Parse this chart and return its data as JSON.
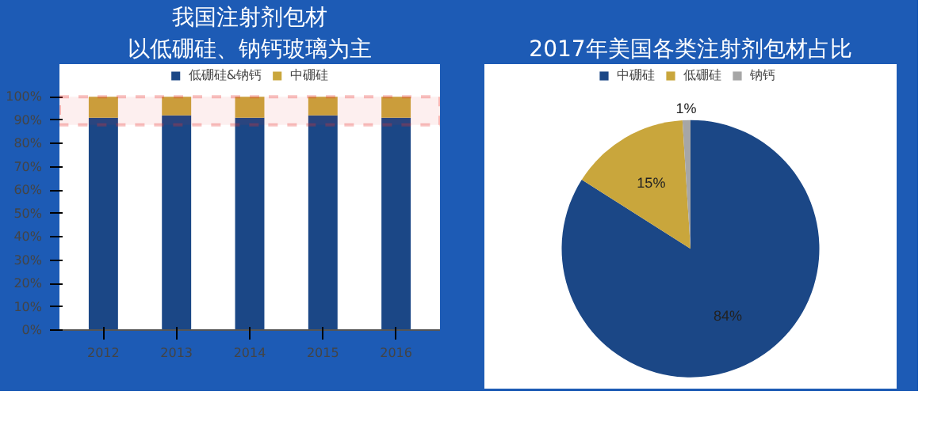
{
  "chart_data": [
    {
      "type": "bar",
      "title": "我国注射剂包材",
      "subtitle": "以低硼硅、钠钙玻璃为主",
      "stacked": true,
      "categories": [
        "2012",
        "2013",
        "2014",
        "2015",
        "2016"
      ],
      "series": [
        {
          "name": "低硼硅&钠钙",
          "color": "#1b4786",
          "values": [
            91,
            92,
            91,
            92,
            91
          ]
        },
        {
          "name": "中硼硅",
          "color": "#c9a63c",
          "values": [
            9,
            8,
            9,
            8,
            9
          ]
        }
      ],
      "ylim": [
        0,
        100
      ],
      "yticks": [
        {
          "value": 0,
          "label": "0%"
        },
        {
          "value": 10,
          "label": "10%"
        },
        {
          "value": 20,
          "label": "20%"
        },
        {
          "value": 30,
          "label": "30%"
        },
        {
          "value": 40,
          "label": "40%"
        },
        {
          "value": 50,
          "label": "50%"
        },
        {
          "value": 60,
          "label": "60%"
        },
        {
          "value": 70,
          "label": "70%"
        },
        {
          "value": 80,
          "label": "80%"
        },
        {
          "value": 90,
          "label": "90%"
        },
        {
          "value": 100,
          "label": "100%"
        }
      ],
      "bands": [
        {
          "axis": "y",
          "from": 88,
          "to": 100,
          "color": "#e8322d"
        }
      ],
      "legend": "top",
      "grid": false
    },
    {
      "type": "pie",
      "title": "2017年美国各类注射剂包材占比",
      "categories": [
        "中硼硅",
        "低硼硅",
        "钠钙"
      ],
      "values": [
        84,
        15,
        1
      ],
      "colors": [
        "#1b4786",
        "#c9a63c",
        "#a6a6a6"
      ],
      "value_labels": [
        "84%",
        "15%",
        "1%"
      ],
      "legend": "top"
    }
  ]
}
